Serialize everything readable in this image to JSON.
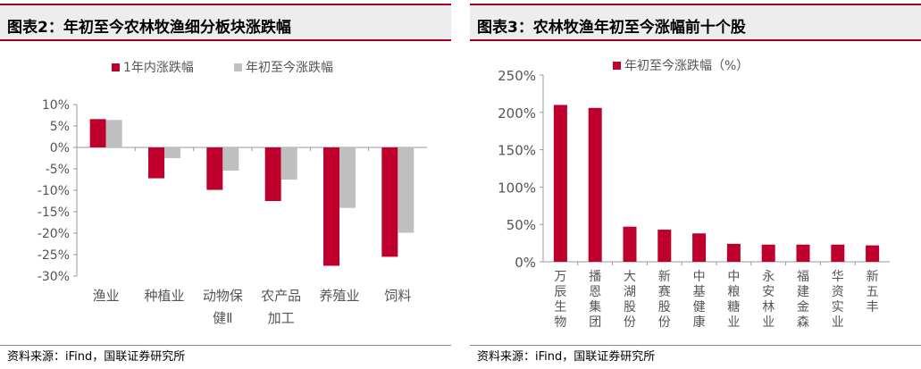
{
  "left": {
    "title": "图表2：年初至今农林牧渔细分板块涨跌幅",
    "source": "资料来源：iFind，国联证券研究所",
    "chart_data": {
      "type": "bar",
      "categories": [
        [
          "渔业"
        ],
        [
          "种植业"
        ],
        [
          "动物保",
          "健Ⅱ"
        ],
        [
          "农产品",
          "加工"
        ],
        [
          "养殖业"
        ],
        [
          "饲料"
        ]
      ],
      "series": [
        {
          "name": "1年内涨跌幅",
          "color": "#c0002c",
          "values": [
            6.6,
            -7.2,
            -9.9,
            -12.5,
            -27.6,
            -25.5
          ]
        },
        {
          "name": "年初至今涨跌幅",
          "color": "#bfbfbf",
          "values": [
            6.4,
            -2.5,
            -5.4,
            -7.5,
            -14.1,
            -19.9
          ]
        }
      ],
      "ylim": [
        -30,
        10
      ],
      "yticks": [
        10,
        5,
        0,
        -5,
        -10,
        -15,
        -20,
        -25,
        -30
      ],
      "ytick_labels": [
        "10%",
        "5%",
        "0%",
        "-5%",
        "-10%",
        "-15%",
        "-20%",
        "-25%",
        "-30%"
      ],
      "legend_position": "top",
      "grid": false
    }
  },
  "right": {
    "title": "图表3：农林牧渔年初至今涨幅前十个股",
    "source": "资料来源：iFind，国联证券研究所",
    "chart_data": {
      "type": "bar",
      "categories": [
        "万辰生物",
        "播恩集团",
        "大湖股份",
        "新赛股份",
        "中基健康",
        "中粮糖业",
        "永安林业",
        "福建金森",
        "华资实业",
        "新五丰"
      ],
      "series": [
        {
          "name": "年初至今涨跌幅（%）",
          "color": "#c0002c",
          "values": [
            210,
            206,
            47,
            43,
            38,
            24,
            23,
            23,
            23,
            22
          ]
        }
      ],
      "ylim": [
        0,
        250
      ],
      "yticks": [
        250,
        200,
        150,
        100,
        50,
        0
      ],
      "ytick_labels": [
        "250%",
        "200%",
        "150%",
        "100%",
        "50%",
        "0%"
      ],
      "legend_position": "top-left",
      "grid": false
    }
  }
}
